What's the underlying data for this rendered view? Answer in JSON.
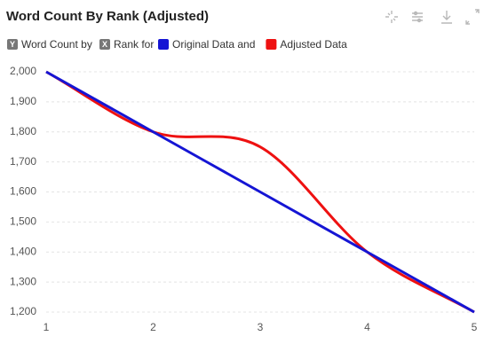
{
  "chart_data": {
    "type": "line",
    "title": "Word Count By Rank (Adjusted)",
    "y_badge": "Y",
    "y_label": "Word Count by",
    "x_badge": "X",
    "x_label": "Rank for",
    "x": [
      1,
      2,
      3,
      4,
      5
    ],
    "series": [
      {
        "name": "Original Data and",
        "color": "#1515d4",
        "values": [
          2000,
          1800,
          1600,
          1400,
          1200
        ]
      },
      {
        "name": "Adjusted Data",
        "color": "#ee1111",
        "values": [
          2000,
          1800,
          1750,
          1400,
          1200
        ]
      }
    ],
    "xlim": [
      1,
      5
    ],
    "xticks": [
      1,
      2,
      3,
      4,
      5
    ],
    "ylim": [
      1200,
      2000
    ],
    "yticks": [
      {
        "value": 1200,
        "label": "1,200"
      },
      {
        "value": 1300,
        "label": "1,300"
      },
      {
        "value": 1400,
        "label": "1,400"
      },
      {
        "value": 1500,
        "label": "1,500"
      },
      {
        "value": 1600,
        "label": "1,600"
      },
      {
        "value": 1700,
        "label": "1,700"
      },
      {
        "value": 1800,
        "label": "1,800"
      },
      {
        "value": 1900,
        "label": "1,900"
      },
      {
        "value": 2000,
        "label": "2,000"
      }
    ],
    "grid": true,
    "smooth": true
  }
}
